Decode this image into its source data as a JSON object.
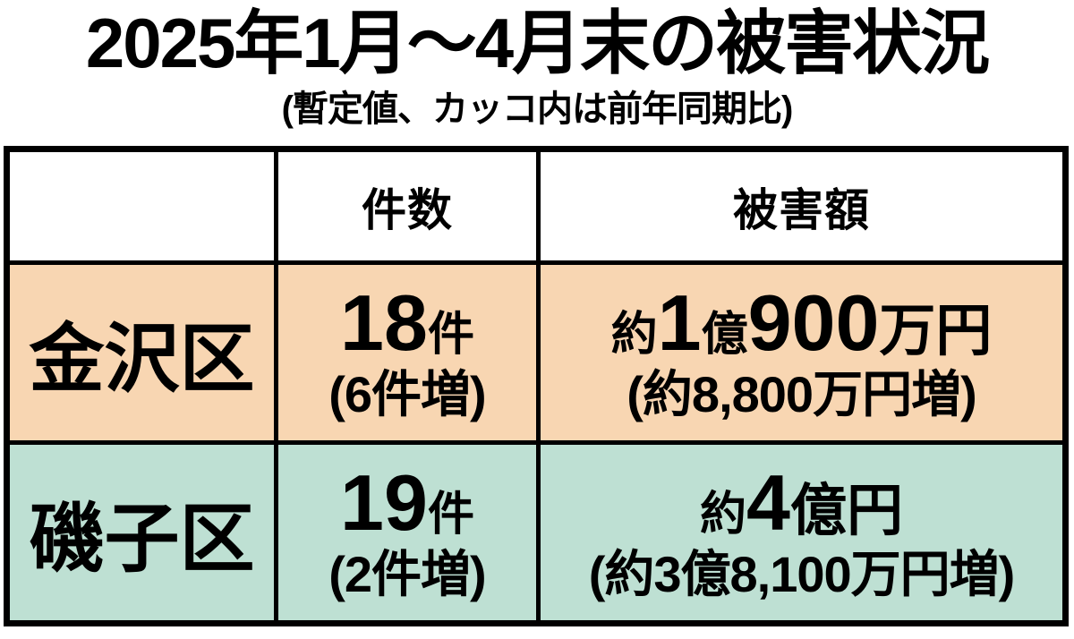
{
  "title": "2025年1月～4月末の被害状況",
  "subtitle": "(暫定値、カッコ内は前年同期比)",
  "colors": {
    "kanazawa_row_bg": "#F8D6B2",
    "isogo_row_bg": "#BEE0D3",
    "border": "#000000",
    "text": "#000000",
    "header_bg": "#FFFFFF"
  },
  "table": {
    "header": {
      "ward": "",
      "cases": "件数",
      "damage": "被害額"
    },
    "rows": [
      {
        "ward": "金沢区",
        "cases": {
          "number": "18",
          "unit": "件",
          "change": "(6件増)"
        },
        "damage": {
          "parts": [
            "約",
            "1",
            "億",
            "900",
            "万円"
          ],
          "change": "(約8,800万円増)"
        }
      },
      {
        "ward": "磯子区",
        "cases": {
          "number": "19",
          "unit": "件",
          "change": "(2件増)"
        },
        "damage": {
          "parts": [
            "約",
            "4",
            "億円"
          ],
          "change": "(約3億8,100万円増)"
        }
      }
    ]
  },
  "chart_data": {
    "type": "table",
    "title": "2025年1月～4月末の被害状況",
    "subtitle": "(暫定値、カッコ内は前年同期比)",
    "columns": [
      "",
      "件数",
      "被害額"
    ],
    "rows": [
      [
        "金沢区",
        "18件 (6件増)",
        "約1億900万円 (約8,800万円増)"
      ],
      [
        "磯子区",
        "19件 (2件増)",
        "約4億円 (約3億8,100万円増)"
      ]
    ]
  }
}
